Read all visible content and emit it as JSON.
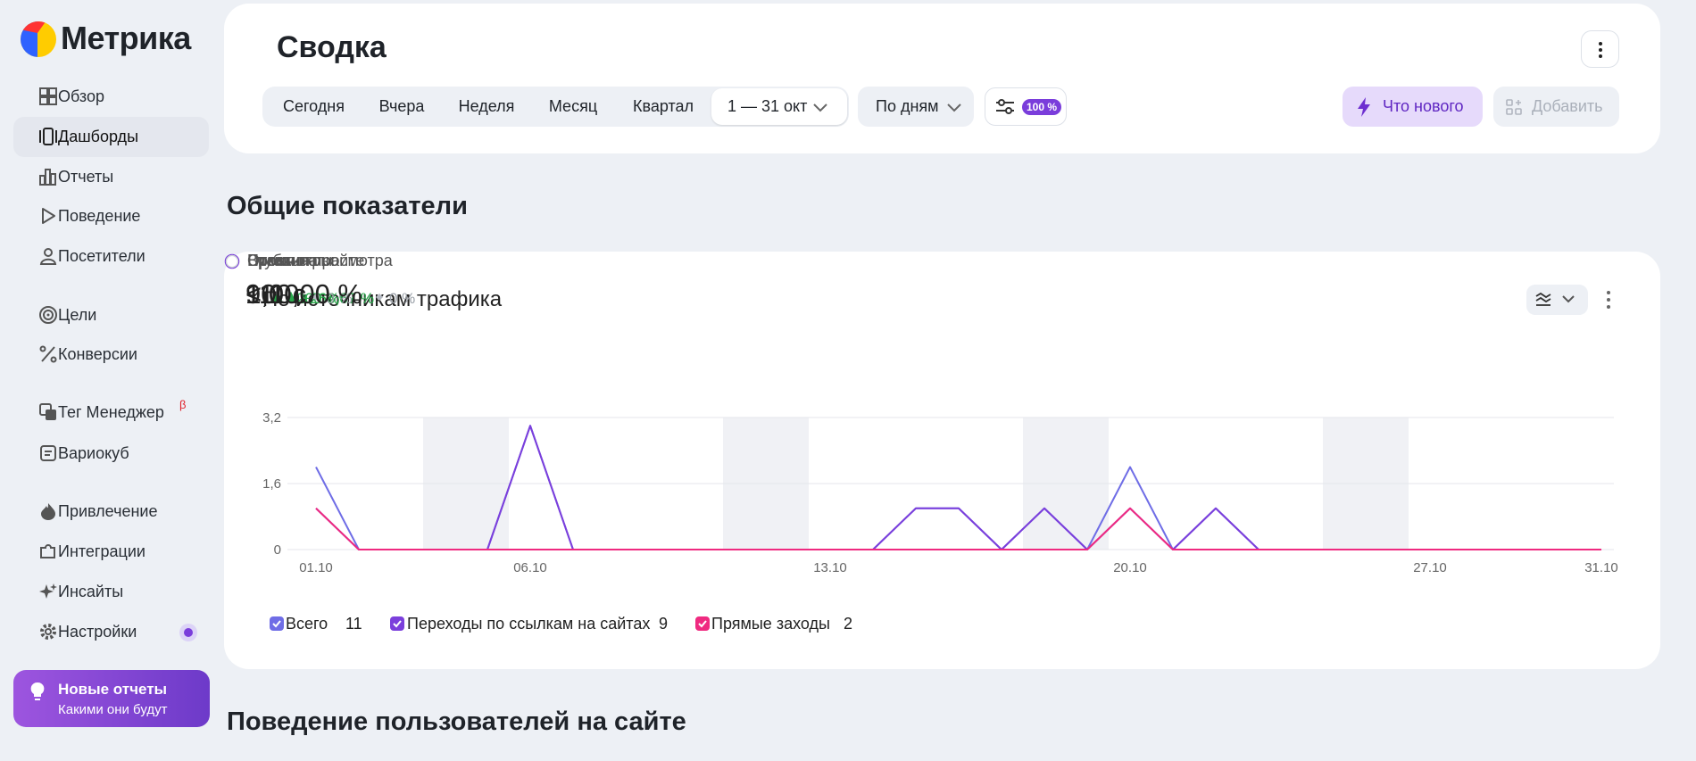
{
  "sidebar": {
    "logo": "Метрика",
    "nav": [
      "Обзор",
      "Дашборды",
      "Отчеты",
      "Поведение",
      "Посетители",
      "Цели",
      "Конверсии",
      "Тег Менеджер",
      "Вариокуб",
      "Привлечение",
      "Интеграции",
      "Инсайты",
      "Настройки"
    ],
    "beta_mark": "β",
    "promo": {
      "title": "Новые отчеты",
      "subtitle": "Какими они будут"
    }
  },
  "header": {
    "title": "Сводка",
    "periods": [
      "Сегодня",
      "Вчера",
      "Неделя",
      "Месяц",
      "Квартал"
    ],
    "date_range": "1 — 31 окт",
    "grouping": "По дням",
    "filter_badge": "100 %",
    "whats_new": "Что нового",
    "add": "Добавить"
  },
  "sections": [
    "Общие показатели",
    "Поведение пользователей на сайте"
  ],
  "widget": {
    "title": "По источникам трафика",
    "metrics": [
      {
        "name": "Просмотры",
        "value": "11",
        "change": "+266,67 %",
        "trend": "up",
        "selected": false
      },
      {
        "name": "Визиты",
        "value": "11",
        "change": "+266,67 %",
        "trend": "up",
        "selected": true
      },
      {
        "name": "Посетители",
        "value": "9",
        "change": "+200 %",
        "trend": "up",
        "selected": false
      },
      {
        "name": "Время на сайте",
        "value": "< 1 с",
        "selected": false
      },
      {
        "name": "Глубина просмотра",
        "value": "1,00",
        "change": "0 %",
        "trend": "flat",
        "selected": false
      },
      {
        "name": "Отказы",
        "value": "100,00 %",
        "change": "0 %",
        "trend": "flat",
        "selected": false
      }
    ]
  },
  "chart_data": {
    "type": "line",
    "categories": [
      "01.10",
      null,
      null,
      null,
      null,
      "06.10",
      null,
      null,
      null,
      null,
      null,
      null,
      "13.10",
      null,
      null,
      null,
      null,
      null,
      null,
      "20.10",
      null,
      null,
      null,
      null,
      null,
      null,
      "27.10",
      null,
      null,
      null,
      "31.10"
    ],
    "series": [
      {
        "name": "Всего",
        "total": 11,
        "color": "#6f6de6",
        "values": [
          2,
          0,
          0,
          0,
          0,
          3,
          0,
          0,
          0,
          0,
          0,
          0,
          0,
          0,
          1,
          1,
          0,
          1,
          0,
          2,
          0,
          1,
          0,
          0,
          0,
          0,
          0,
          0,
          0,
          0,
          0
        ]
      },
      {
        "name": "Переходы по ссылкам на сайтах",
        "total": 9,
        "color": "#7b3fdc",
        "values": [
          1,
          0,
          0,
          0,
          0,
          3,
          0,
          0,
          0,
          0,
          0,
          0,
          0,
          0,
          1,
          1,
          0,
          1,
          0,
          1,
          0,
          1,
          0,
          0,
          0,
          0,
          0,
          0,
          0,
          0,
          0
        ]
      },
      {
        "name": "Прямые заходы",
        "total": 2,
        "color": "#ef2a80",
        "values": [
          1,
          0,
          0,
          0,
          0,
          0,
          0,
          0,
          0,
          0,
          0,
          0,
          0,
          0,
          0,
          0,
          0,
          0,
          0,
          1,
          0,
          0,
          0,
          0,
          0,
          0,
          0,
          0,
          0,
          0,
          0
        ]
      }
    ],
    "ylim": [
      0,
      3.2
    ],
    "yticks": [
      0,
      {
        "value": 1.6,
        "label": "1,6"
      },
      {
        "value": 3.2,
        "label": "3,2"
      }
    ],
    "grid": true
  }
}
